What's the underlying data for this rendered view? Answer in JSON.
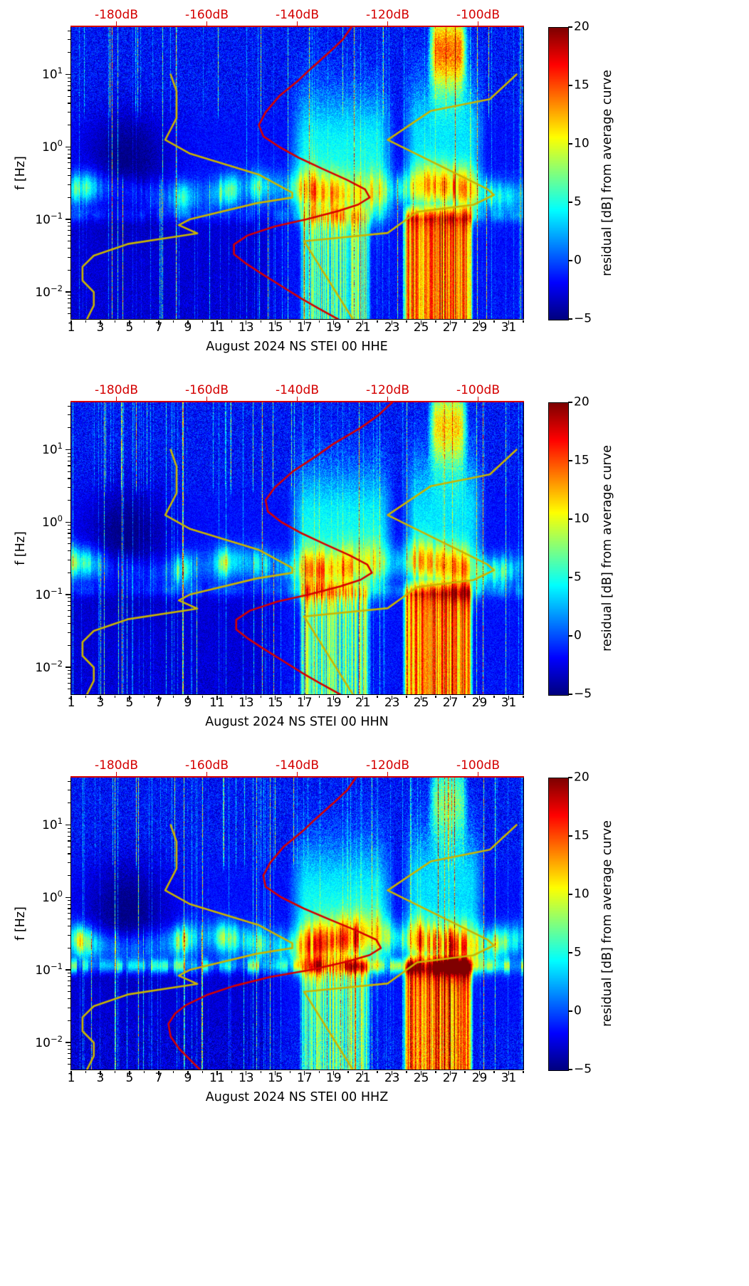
{
  "figure": {
    "background": "#ffffff",
    "accent_red": "#d40000",
    "model_curve_color": "#c9b400",
    "colormap": "jet"
  },
  "noise_models": {
    "nlnm": {
      "name": "low noise reference curve",
      "color": "#c9b400",
      "points_f_hz_db": [
        [
          10,
          -168
        ],
        [
          5.88,
          -166.7
        ],
        [
          2.5,
          -166.7
        ],
        [
          1.25,
          -169.2
        ],
        [
          0.806,
          -163.7
        ],
        [
          0.417,
          -148.6
        ],
        [
          0.233,
          -141.1
        ],
        [
          0.2,
          -141.1
        ],
        [
          0.167,
          -149
        ],
        [
          0.1,
          -163.8
        ],
        [
          0.0833,
          -166.2
        ],
        [
          0.0641,
          -162.1
        ],
        [
          0.0457,
          -177.5
        ],
        [
          0.0316,
          -185
        ],
        [
          0.0222,
          -187.5
        ],
        [
          0.0143,
          -187.5
        ],
        [
          0.0099,
          -185
        ],
        [
          0.0065,
          -185
        ],
        [
          0.0042,
          -186.5
        ]
      ]
    },
    "nhnm": {
      "name": "high noise reference curve",
      "color": "#c9b400",
      "points_f_hz_db": [
        [
          10,
          -91.5
        ],
        [
          4.55,
          -97.4
        ],
        [
          3.13,
          -110.5
        ],
        [
          1.25,
          -120
        ],
        [
          0.263,
          -98
        ],
        [
          0.217,
          -96.5
        ],
        [
          0.159,
          -101
        ],
        [
          0.127,
          -113.5
        ],
        [
          0.0649,
          -120
        ],
        [
          0.05,
          -138.5
        ],
        [
          0.0042,
          -127.7
        ]
      ]
    }
  },
  "chart_data": [
    {
      "type": "heatmap",
      "subtype": "seismic noise residual spectrogram",
      "xlabel": "August 2024 NS STEI 00 HHE",
      "channel": "HHE",
      "ylabel": "f [Hz]",
      "y_scale": "log",
      "y_range_hz": [
        0.0042,
        45
      ],
      "y_ticks": [
        {
          "base": "10",
          "exp": "1",
          "value": 10
        },
        {
          "base": "10",
          "exp": "0",
          "value": 1
        },
        {
          "base": "10",
          "exp": "−1",
          "value": 0.1
        },
        {
          "base": "10",
          "exp": "−2",
          "value": 0.01
        }
      ],
      "x_range_days": [
        1,
        32
      ],
      "x_major_ticks": [
        1,
        3,
        5,
        7,
        9,
        11,
        13,
        15,
        17,
        19,
        21,
        23,
        25,
        27,
        29,
        31
      ],
      "top_axis": {
        "color": "#d40000",
        "range_db": [
          -190,
          -90
        ],
        "ticks": [
          {
            "label": "-180dB",
            "value": -180
          },
          {
            "label": "-160dB",
            "value": -160
          },
          {
            "label": "-140dB",
            "value": -140
          },
          {
            "label": "-120dB",
            "value": -120
          },
          {
            "label": "-100dB",
            "value": -100
          }
        ]
      },
      "colorbar": {
        "label": "residual [dB] from average curve",
        "range": [
          -5,
          20
        ],
        "colormap": "jet",
        "ticks": [
          {
            "label": "20",
            "value": 20
          },
          {
            "label": "15",
            "value": 15
          },
          {
            "label": "10",
            "value": 10
          },
          {
            "label": "5",
            "value": 5
          },
          {
            "label": "0",
            "value": 0
          },
          {
            "label": "−5",
            "value": -5
          }
        ]
      },
      "psd_curve": {
        "name": "median power spectral density",
        "color": "#d40000",
        "points_f_hz_db": [
          [
            45,
            -128
          ],
          [
            30,
            -130
          ],
          [
            20,
            -133
          ],
          [
            12,
            -137
          ],
          [
            8,
            -140
          ],
          [
            5,
            -144
          ],
          [
            3,
            -147
          ],
          [
            2,
            -148.5
          ],
          [
            1.4,
            -147.5
          ],
          [
            1.0,
            -144
          ],
          [
            0.7,
            -139.5
          ],
          [
            0.5,
            -134.5
          ],
          [
            0.35,
            -129
          ],
          [
            0.26,
            -125
          ],
          [
            0.2,
            -124
          ],
          [
            0.16,
            -126.5
          ],
          [
            0.13,
            -131
          ],
          [
            0.1,
            -138
          ],
          [
            0.08,
            -145
          ],
          [
            0.06,
            -151
          ],
          [
            0.045,
            -154
          ],
          [
            0.033,
            -154
          ],
          [
            0.025,
            -151.5
          ],
          [
            0.018,
            -148
          ],
          [
            0.012,
            -143.5
          ],
          [
            0.008,
            -139
          ],
          [
            0.006,
            -135.5
          ],
          [
            0.0042,
            -131
          ]
        ]
      }
    },
    {
      "type": "heatmap",
      "subtype": "seismic noise residual spectrogram",
      "xlabel": "August 2024 NS STEI 00 HHN",
      "channel": "HHN",
      "ylabel": "f [Hz]",
      "y_scale": "log",
      "y_range_hz": [
        0.0042,
        45
      ],
      "y_ticks": [
        {
          "base": "10",
          "exp": "1",
          "value": 10
        },
        {
          "base": "10",
          "exp": "0",
          "value": 1
        },
        {
          "base": "10",
          "exp": "−1",
          "value": 0.1
        },
        {
          "base": "10",
          "exp": "−2",
          "value": 0.01
        }
      ],
      "x_range_days": [
        1,
        32
      ],
      "x_major_ticks": [
        1,
        3,
        5,
        7,
        9,
        11,
        13,
        15,
        17,
        19,
        21,
        23,
        25,
        27,
        29,
        31
      ],
      "top_axis": {
        "color": "#d40000",
        "range_db": [
          -190,
          -90
        ],
        "ticks": [
          {
            "label": "-180dB",
            "value": -180
          },
          {
            "label": "-160dB",
            "value": -160
          },
          {
            "label": "-140dB",
            "value": -140
          },
          {
            "label": "-120dB",
            "value": -120
          },
          {
            "label": "-100dB",
            "value": -100
          }
        ]
      },
      "colorbar": {
        "label": "residual [dB] from average curve",
        "range": [
          -5,
          20
        ],
        "colormap": "jet",
        "ticks": [
          {
            "label": "20",
            "value": 20
          },
          {
            "label": "15",
            "value": 15
          },
          {
            "label": "10",
            "value": 10
          },
          {
            "label": "5",
            "value": 5
          },
          {
            "label": "0",
            "value": 0
          },
          {
            "label": "−5",
            "value": -5
          }
        ]
      },
      "psd_curve": {
        "name": "median power spectral density",
        "color": "#d40000",
        "points_f_hz_db": [
          [
            45,
            -119
          ],
          [
            30,
            -122
          ],
          [
            20,
            -126
          ],
          [
            12,
            -132
          ],
          [
            8,
            -136
          ],
          [
            5,
            -141
          ],
          [
            3,
            -145
          ],
          [
            2,
            -147
          ],
          [
            1.4,
            -146.5
          ],
          [
            1.0,
            -143.5
          ],
          [
            0.7,
            -139
          ],
          [
            0.5,
            -134
          ],
          [
            0.35,
            -128.5
          ],
          [
            0.26,
            -124.5
          ],
          [
            0.2,
            -123.5
          ],
          [
            0.16,
            -126
          ],
          [
            0.13,
            -130.5
          ],
          [
            0.1,
            -137.5
          ],
          [
            0.08,
            -144.5
          ],
          [
            0.06,
            -150.5
          ],
          [
            0.045,
            -153.5
          ],
          [
            0.033,
            -153.5
          ],
          [
            0.025,
            -151
          ],
          [
            0.018,
            -147.5
          ],
          [
            0.012,
            -143
          ],
          [
            0.008,
            -138.5
          ],
          [
            0.006,
            -135
          ],
          [
            0.0042,
            -130.5
          ]
        ]
      }
    },
    {
      "type": "heatmap",
      "subtype": "seismic noise residual spectrogram",
      "xlabel": "August 2024 NS STEI 00 HHZ",
      "channel": "HHZ",
      "ylabel": "f [Hz]",
      "y_scale": "log",
      "y_range_hz": [
        0.0042,
        45
      ],
      "y_ticks": [
        {
          "base": "10",
          "exp": "1",
          "value": 10
        },
        {
          "base": "10",
          "exp": "0",
          "value": 1
        },
        {
          "base": "10",
          "exp": "−1",
          "value": 0.1
        },
        {
          "base": "10",
          "exp": "−2",
          "value": 0.01
        }
      ],
      "x_range_days": [
        1,
        32
      ],
      "x_major_ticks": [
        1,
        3,
        5,
        7,
        9,
        11,
        13,
        15,
        17,
        19,
        21,
        23,
        25,
        27,
        29,
        31
      ],
      "top_axis": {
        "color": "#d40000",
        "range_db": [
          -190,
          -90
        ],
        "ticks": [
          {
            "label": "-180dB",
            "value": -180
          },
          {
            "label": "-160dB",
            "value": -160
          },
          {
            "label": "-140dB",
            "value": -140
          },
          {
            "label": "-120dB",
            "value": -120
          },
          {
            "label": "-100dB",
            "value": -100
          }
        ]
      },
      "colorbar": {
        "label": "residual [dB] from average curve",
        "range": [
          -5,
          20
        ],
        "colormap": "jet",
        "ticks": [
          {
            "label": "20",
            "value": 20
          },
          {
            "label": "15",
            "value": 15
          },
          {
            "label": "10",
            "value": 10
          },
          {
            "label": "5",
            "value": 5
          },
          {
            "label": "0",
            "value": 0
          },
          {
            "label": "−5",
            "value": -5
          }
        ]
      },
      "psd_curve": {
        "name": "median power spectral density",
        "color": "#d40000",
        "points_f_hz_db": [
          [
            45,
            -127
          ],
          [
            30,
            -129
          ],
          [
            20,
            -132
          ],
          [
            12,
            -136
          ],
          [
            8,
            -139
          ],
          [
            5,
            -143
          ],
          [
            3,
            -146
          ],
          [
            2,
            -147.5
          ],
          [
            1.4,
            -147
          ],
          [
            1.0,
            -143.5
          ],
          [
            0.7,
            -138.5
          ],
          [
            0.5,
            -133
          ],
          [
            0.35,
            -127
          ],
          [
            0.26,
            -122.5
          ],
          [
            0.2,
            -121.5
          ],
          [
            0.16,
            -124
          ],
          [
            0.13,
            -129
          ],
          [
            0.1,
            -137
          ],
          [
            0.08,
            -146
          ],
          [
            0.06,
            -154
          ],
          [
            0.045,
            -160
          ],
          [
            0.033,
            -164.5
          ],
          [
            0.025,
            -167
          ],
          [
            0.018,
            -168.5
          ],
          [
            0.012,
            -168
          ],
          [
            0.008,
            -166
          ],
          [
            0.006,
            -164
          ],
          [
            0.0042,
            -161.5
          ]
        ]
      }
    }
  ]
}
